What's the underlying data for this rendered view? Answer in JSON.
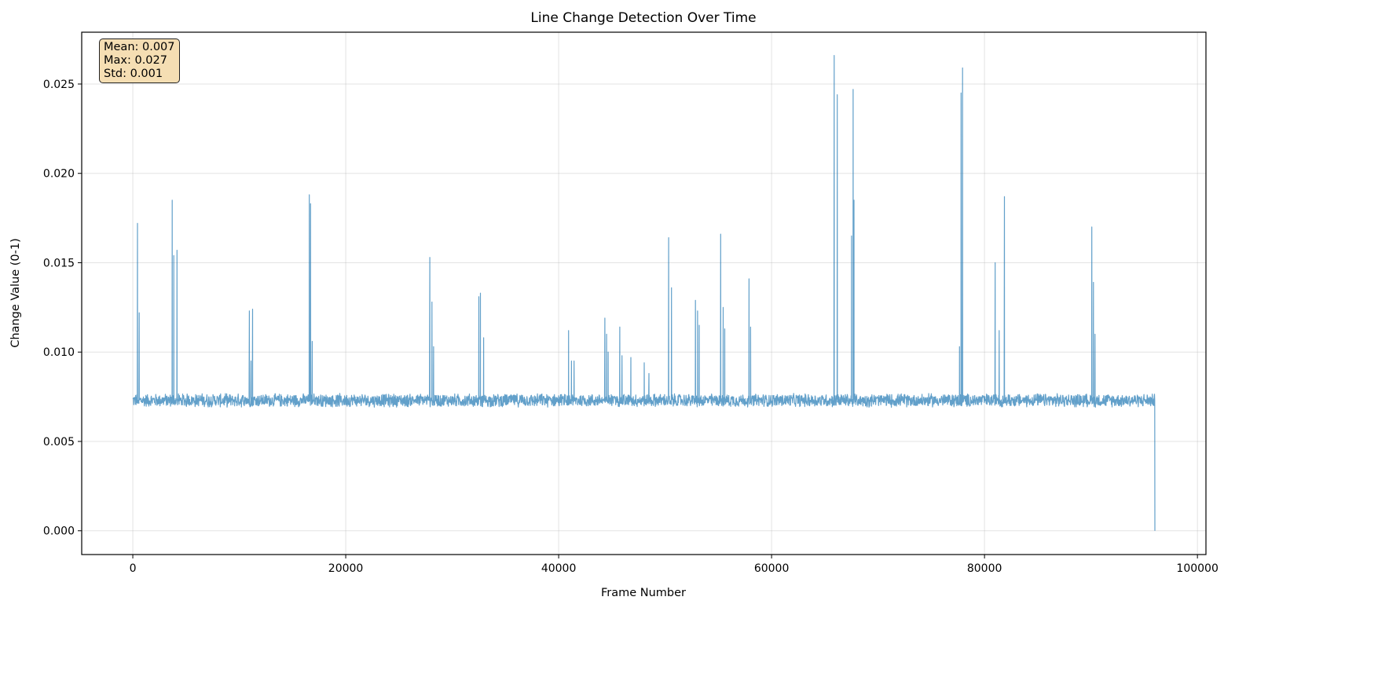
{
  "chart_data": {
    "type": "line",
    "title": "Line Change Detection Over Time",
    "xlabel": "Frame Number",
    "ylabel": "Change Value (0-1)",
    "xlim": [
      -4800,
      100800
    ],
    "ylim": [
      -0.00133,
      0.0279
    ],
    "xticks": [
      0,
      20000,
      40000,
      60000,
      80000,
      100000
    ],
    "xtick_labels": [
      "0",
      "20000",
      "40000",
      "60000",
      "80000",
      "100000"
    ],
    "yticks": [
      0,
      0.005,
      0.01,
      0.015,
      0.02,
      0.025
    ],
    "ytick_labels": [
      "0.000",
      "0.005",
      "0.010",
      "0.015",
      "0.020",
      "0.025"
    ],
    "grid": true,
    "line_color": "#1f77b4",
    "line_alpha": 0.7,
    "x_range": [
      0,
      96000
    ],
    "baseline_band": [
      0.0069,
      0.0077
    ],
    "final_point": {
      "x": 96000,
      "y": 0.0
    },
    "spikes": [
      {
        "x": 440,
        "y": 0.0172
      },
      {
        "x": 600,
        "y": 0.0122
      },
      {
        "x": 3700,
        "y": 0.0185
      },
      {
        "x": 3850,
        "y": 0.0154
      },
      {
        "x": 4150,
        "y": 0.0157
      },
      {
        "x": 10950,
        "y": 0.0123
      },
      {
        "x": 11100,
        "y": 0.0095
      },
      {
        "x": 11250,
        "y": 0.0124
      },
      {
        "x": 16580,
        "y": 0.0188
      },
      {
        "x": 16700,
        "y": 0.0183
      },
      {
        "x": 16850,
        "y": 0.0106
      },
      {
        "x": 27900,
        "y": 0.0153
      },
      {
        "x": 28100,
        "y": 0.0128
      },
      {
        "x": 28250,
        "y": 0.0103
      },
      {
        "x": 32500,
        "y": 0.0131
      },
      {
        "x": 32650,
        "y": 0.0133
      },
      {
        "x": 32950,
        "y": 0.0108
      },
      {
        "x": 40930,
        "y": 0.0112
      },
      {
        "x": 41200,
        "y": 0.0095
      },
      {
        "x": 41450,
        "y": 0.0095
      },
      {
        "x": 44340,
        "y": 0.0119
      },
      {
        "x": 44500,
        "y": 0.011
      },
      {
        "x": 44650,
        "y": 0.01
      },
      {
        "x": 45740,
        "y": 0.0114
      },
      {
        "x": 45950,
        "y": 0.0098
      },
      {
        "x": 46780,
        "y": 0.0097
      },
      {
        "x": 48040,
        "y": 0.0094
      },
      {
        "x": 48480,
        "y": 0.0088
      },
      {
        "x": 50330,
        "y": 0.0164
      },
      {
        "x": 50600,
        "y": 0.0136
      },
      {
        "x": 52850,
        "y": 0.0129
      },
      {
        "x": 53050,
        "y": 0.0123
      },
      {
        "x": 53200,
        "y": 0.0115
      },
      {
        "x": 55220,
        "y": 0.0166
      },
      {
        "x": 55450,
        "y": 0.0125
      },
      {
        "x": 55600,
        "y": 0.0113
      },
      {
        "x": 57880,
        "y": 0.0141
      },
      {
        "x": 58030,
        "y": 0.0114
      },
      {
        "x": 65880,
        "y": 0.0266
      },
      {
        "x": 66170,
        "y": 0.0244
      },
      {
        "x": 67510,
        "y": 0.0165
      },
      {
        "x": 67660,
        "y": 0.0247
      },
      {
        "x": 67740,
        "y": 0.0185
      },
      {
        "x": 77650,
        "y": 0.0103
      },
      {
        "x": 77800,
        "y": 0.0245
      },
      {
        "x": 77940,
        "y": 0.0259
      },
      {
        "x": 81000,
        "y": 0.015
      },
      {
        "x": 81380,
        "y": 0.0112
      },
      {
        "x": 81870,
        "y": 0.0187
      },
      {
        "x": 90080,
        "y": 0.017
      },
      {
        "x": 90230,
        "y": 0.0139
      },
      {
        "x": 90380,
        "y": 0.011
      }
    ]
  },
  "stats_box": {
    "mean": "Mean: 0.007",
    "max": "Max: 0.027",
    "std": "Std: 0.001",
    "background": "#f5deb3"
  }
}
